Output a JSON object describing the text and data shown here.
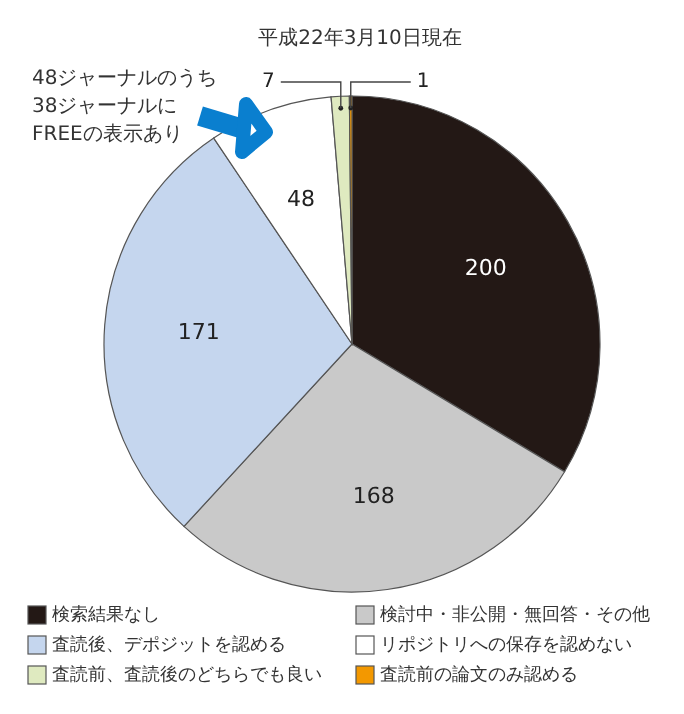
{
  "chart_data": {
    "type": "pie",
    "categories": [
      "検索結果なし",
      "検討中・非公開・無回答・その他",
      "査読後、デポジットを認める",
      "リポジトリへの保存を認めない",
      "査読前、査読後のどちらでも良い",
      "査読前の論文のみ認める"
    ],
    "values": [
      200,
      168,
      171,
      48,
      7,
      1
    ],
    "colors": [
      "#231815",
      "#c9c9c9",
      "#c5d6ee",
      "#ffffff",
      "#dfeac0",
      "#f39800"
    ],
    "data_labels": true,
    "legend": "bottom",
    "annotations": [
      "平成22年3月10日現在",
      "48ジャーナルのうち\n38ジャーナルに\nFREEの表示あり"
    ]
  }
}
